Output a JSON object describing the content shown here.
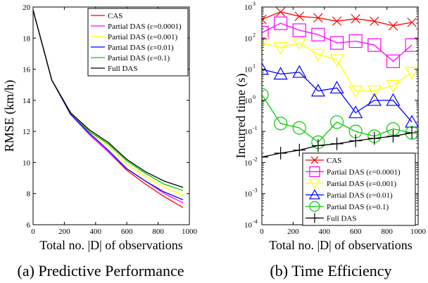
{
  "chart_data": [
    {
      "panel": "a",
      "type": "line",
      "caption": "(a) Predictive Performance",
      "xlabel": "Total no. |D| of observations",
      "ylabel": "RMSE (km/h)",
      "xlim": [
        0,
        1000
      ],
      "ylim": [
        6,
        20
      ],
      "xticks": [
        "0",
        "200",
        "400",
        "600",
        "800",
        "1000"
      ],
      "yticks": [
        "6",
        "8",
        "10",
        "12",
        "14",
        "16",
        "18",
        "20"
      ],
      "yscale": "linear",
      "grid": false,
      "legend_position": "top-right",
      "x": [
        0,
        120,
        240,
        360,
        480,
        600,
        720,
        840,
        960
      ],
      "series": [
        {
          "name": "CAS",
          "color": "#ff0000",
          "values": [
            19.8,
            15.3,
            13.1,
            11.8,
            10.7,
            9.5,
            8.6,
            7.8,
            7.1
          ]
        },
        {
          "name": "Partial DAS (ε=0.0001)",
          "color": "#ff00ff",
          "values": [
            19.8,
            15.3,
            13.1,
            11.8,
            10.7,
            9.6,
            8.8,
            8.0,
            7.4
          ]
        },
        {
          "name": "Partial DAS (ε=0.001)",
          "color": "#ffff00",
          "values": [
            19.8,
            15.3,
            13.2,
            12.0,
            11.1,
            9.9,
            9.1,
            8.4,
            7.9
          ]
        },
        {
          "name": "Partial DAS (ε=0.01)",
          "color": "#0000ff",
          "values": [
            19.8,
            15.3,
            13.1,
            11.9,
            10.8,
            9.6,
            8.8,
            8.1,
            7.6
          ]
        },
        {
          "name": "Partial DAS (ε=0.1)",
          "color": "#00cc00",
          "values": [
            19.8,
            15.3,
            13.2,
            12.0,
            11.2,
            10.1,
            9.3,
            8.6,
            8.2
          ]
        },
        {
          "name": "Full DAS",
          "color": "#000000",
          "values": [
            19.8,
            15.3,
            13.2,
            12.1,
            11.3,
            10.2,
            9.4,
            8.8,
            8.4
          ]
        }
      ]
    },
    {
      "panel": "b",
      "type": "line",
      "caption": "(b) Time Efficiency",
      "xlabel": "Total no. |D| of observations",
      "ylabel": "Incurred time (s)",
      "xlim": [
        0,
        1000
      ],
      "ylim": [
        0.0001,
        1000
      ],
      "xticks": [
        "0",
        "200",
        "400",
        "600",
        "800",
        "1000"
      ],
      "yticks": [
        {
          "value": 0.0001,
          "mantissa": "10",
          "exp": "-4"
        },
        {
          "value": 0.001,
          "mantissa": "10",
          "exp": "-3"
        },
        {
          "value": 0.01,
          "mantissa": "10",
          "exp": "-2"
        },
        {
          "value": 0.1,
          "mantissa": "10",
          "exp": "-1"
        },
        {
          "value": 1,
          "mantissa": "10",
          "exp": "0"
        },
        {
          "value": 10,
          "mantissa": "10",
          "exp": "1"
        },
        {
          "value": 100,
          "mantissa": "10",
          "exp": "2"
        },
        {
          "value": 1000,
          "mantissa": "10",
          "exp": "3"
        }
      ],
      "yscale": "log",
      "grid": false,
      "legend_position": "bottom-right",
      "x": [
        0,
        120,
        240,
        360,
        480,
        600,
        720,
        840,
        960
      ],
      "series": [
        {
          "name": "CAS",
          "color": "#ff0000",
          "marker": "x",
          "values": [
            400,
            700,
            500,
            450,
            350,
            420,
            350,
            250,
            320
          ]
        },
        {
          "name": "Partial DAS (ε=0.0001)",
          "color": "#ff00ff",
          "marker": "square",
          "values": [
            150,
            300,
            180,
            130,
            70,
            80,
            60,
            18,
            60
          ]
        },
        {
          "name": "Partial DAS (ε=0.001)",
          "color": "#ffff00",
          "marker": "triangle-down",
          "values": [
            70,
            50,
            70,
            30,
            20,
            2,
            2,
            3,
            8
          ]
        },
        {
          "name": "Partial DAS (ε=0.01)",
          "color": "#0000ff",
          "marker": "triangle-up",
          "values": [
            10,
            7,
            8,
            2,
            2.5,
            0.4,
            1,
            1,
            0.2
          ]
        },
        {
          "name": "Partial DAS (ε=0.1)",
          "color": "#00cc00",
          "marker": "circle",
          "values": [
            1.5,
            0.18,
            0.13,
            0.045,
            0.2,
            0.1,
            0.07,
            0.12,
            0.09
          ]
        },
        {
          "name": "Full DAS",
          "color": "#000000",
          "marker": "plus",
          "values": [
            0.015,
            0.02,
            0.025,
            0.035,
            0.04,
            0.05,
            0.06,
            0.07,
            0.09
          ]
        }
      ]
    }
  ]
}
